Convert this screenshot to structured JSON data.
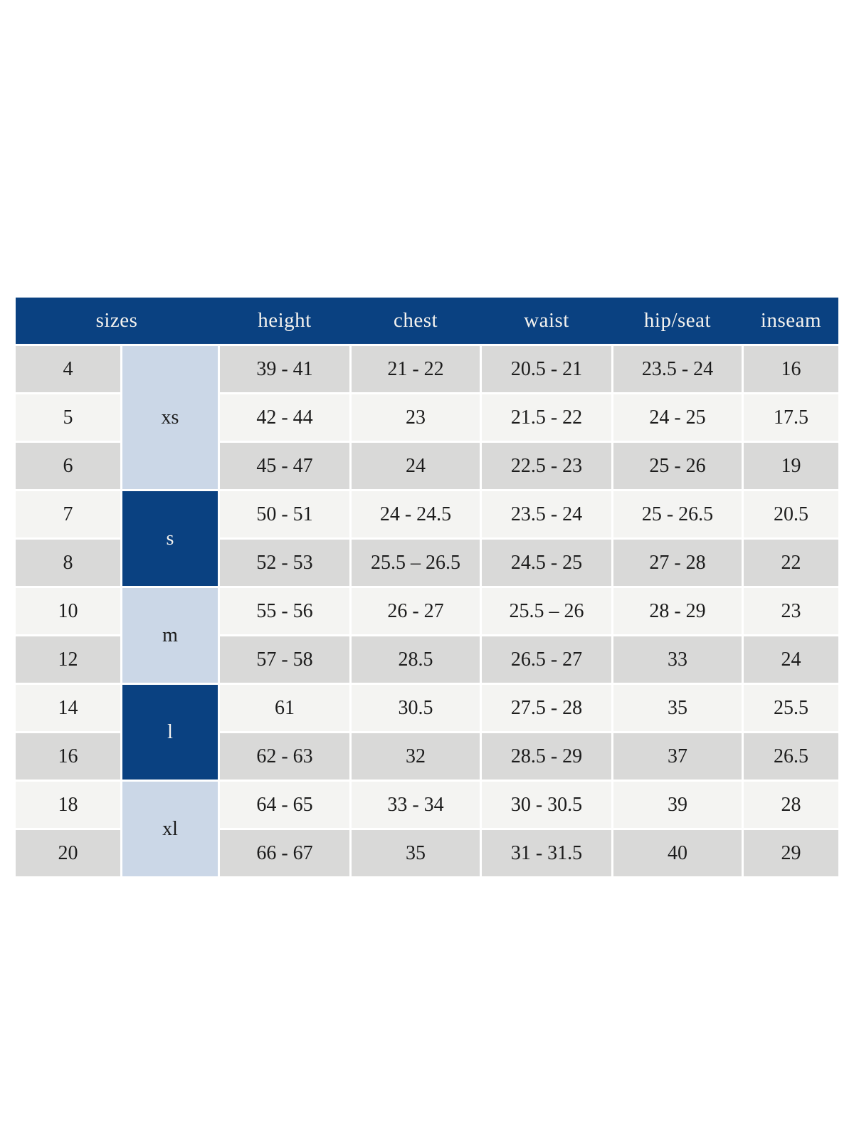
{
  "colors": {
    "header_navy": "#0a4181",
    "group_dark": "#0a4181",
    "group_light": "#cbd7e7",
    "row_gray": "#d9d9d8",
    "row_light": "#f4f4f2",
    "header_text": "#f5f3ef",
    "body_text": "#1c1c1c"
  },
  "chart_data": {
    "type": "table",
    "columns": [
      "sizes",
      "height",
      "chest",
      "waist",
      "hip/seat",
      "inseam"
    ],
    "header": {
      "sizes": "sizes",
      "height": "height",
      "chest": "chest",
      "waist": "waist",
      "hip_seat": "hip/seat",
      "inseam": "inseam"
    },
    "size_groups": [
      {
        "label": "xs",
        "sizes": [
          "4",
          "5",
          "6"
        ]
      },
      {
        "label": "s",
        "sizes": [
          "7",
          "8"
        ]
      },
      {
        "label": "m",
        "sizes": [
          "10",
          "12"
        ]
      },
      {
        "label": "l",
        "sizes": [
          "14",
          "16"
        ]
      },
      {
        "label": "xl",
        "sizes": [
          "18",
          "20"
        ]
      }
    ],
    "rows": [
      {
        "size": "4",
        "group": "xs",
        "height": "39 - 41",
        "chest": "21 - 22",
        "waist": "20.5 - 21",
        "hip_seat": "23.5 - 24",
        "inseam": "16"
      },
      {
        "size": "5",
        "group": "xs",
        "height": "42 - 44",
        "chest": "23",
        "waist": "21.5 - 22",
        "hip_seat": "24 - 25",
        "inseam": "17.5"
      },
      {
        "size": "6",
        "group": "xs",
        "height": "45 - 47",
        "chest": "24",
        "waist": "22.5 - 23",
        "hip_seat": "25 - 26",
        "inseam": "19"
      },
      {
        "size": "7",
        "group": "s",
        "height": "50 - 51",
        "chest": "24 - 24.5",
        "waist": "23.5 - 24",
        "hip_seat": "25 - 26.5",
        "inseam": "20.5"
      },
      {
        "size": "8",
        "group": "s",
        "height": "52 - 53",
        "chest": "25.5 – 26.5",
        "waist": "24.5 - 25",
        "hip_seat": "27 - 28",
        "inseam": "22"
      },
      {
        "size": "10",
        "group": "m",
        "height": "55 - 56",
        "chest": "26 - 27",
        "waist": "25.5 – 26",
        "hip_seat": "28 - 29",
        "inseam": "23"
      },
      {
        "size": "12",
        "group": "m",
        "height": "57 - 58",
        "chest": "28.5",
        "waist": "26.5 - 27",
        "hip_seat": "33",
        "inseam": "24"
      },
      {
        "size": "14",
        "group": "l",
        "height": "61",
        "chest": "30.5",
        "waist": "27.5 - 28",
        "hip_seat": "35",
        "inseam": "25.5"
      },
      {
        "size": "16",
        "group": "l",
        "height": "62 - 63",
        "chest": "32",
        "waist": "28.5 - 29",
        "hip_seat": "37",
        "inseam": "26.5"
      },
      {
        "size": "18",
        "group": "xl",
        "height": "64 - 65",
        "chest": "33 - 34",
        "waist": "30 - 30.5",
        "hip_seat": "39",
        "inseam": "28"
      },
      {
        "size": "20",
        "group": "xl",
        "height": "66 - 67",
        "chest": "35",
        "waist": "31 - 31.5",
        "hip_seat": "40",
        "inseam": "29"
      }
    ]
  }
}
